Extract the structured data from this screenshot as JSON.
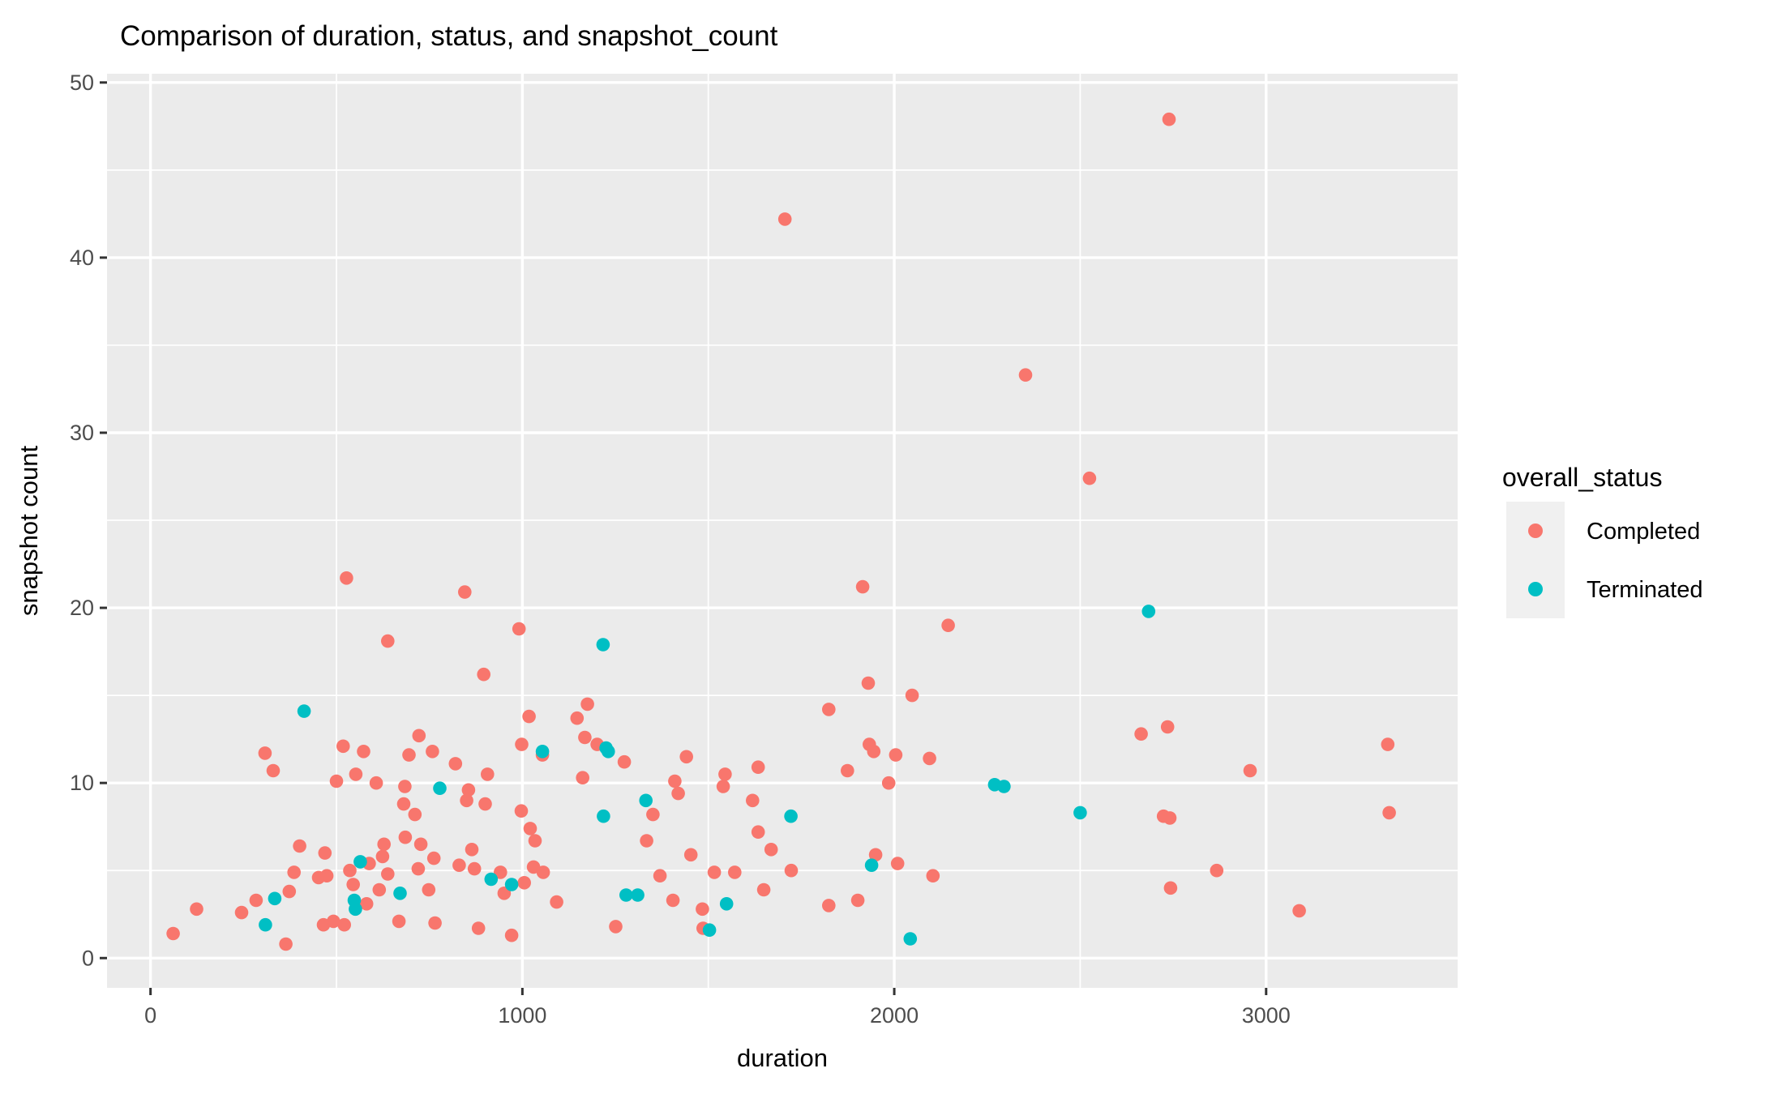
{
  "title": "Comparison of duration, status, and snapshot_count",
  "colors": {
    "panel_bg": "#EBEBEB",
    "grid": "#FFFFFF",
    "tick_text": "#4D4D4D",
    "tick_mark": "#333333",
    "text": "#000000",
    "legend_key_bg": "#F0F0F0",
    "completed": "#F8766D",
    "terminated": "#00BFC4"
  },
  "chart_data": {
    "type": "scatter",
    "title": "Comparison of duration, status, and snapshot_count",
    "xlabel": "duration",
    "ylabel": "snapshot count",
    "xlim": [
      -117,
      3515
    ],
    "ylim": [
      -1.7,
      50.5
    ],
    "x_ticks": [
      0,
      1000,
      2000,
      3000
    ],
    "x_minor_ticks": [
      500,
      1500,
      2500
    ],
    "y_ticks": [
      0,
      10,
      20,
      30,
      40,
      50
    ],
    "y_minor_ticks": [
      5,
      15,
      25,
      35,
      45
    ],
    "grid": true,
    "point_radius_px": 8.3,
    "legend": {
      "title": "overall_status",
      "position": "right",
      "entries": [
        {
          "label": "Completed",
          "color": "#F8766D"
        },
        {
          "label": "Terminated",
          "color": "#00BFC4"
        }
      ]
    },
    "series": [
      {
        "name": "Completed",
        "color": "#F8766D",
        "points": [
          [
            2739,
            47.9
          ],
          [
            1706,
            42.2
          ],
          [
            2353,
            33.3
          ],
          [
            2525,
            27.4
          ],
          [
            527,
            21.7
          ],
          [
            845,
            20.9
          ],
          [
            991,
            18.8
          ],
          [
            638,
            18.1
          ],
          [
            896,
            16.2
          ],
          [
            1018,
            13.8
          ],
          [
            722,
            12.7
          ],
          [
            518,
            12.1
          ],
          [
            573,
            11.8
          ],
          [
            758,
            11.8
          ],
          [
            998,
            12.2
          ],
          [
            1054,
            11.6
          ],
          [
            308,
            11.7
          ],
          [
            330,
            10.7
          ],
          [
            1915,
            21.2
          ],
          [
            2145,
            19.0
          ],
          [
            1930,
            15.7
          ],
          [
            2048,
            15.0
          ],
          [
            1824,
            14.2
          ],
          [
            1175,
            14.5
          ],
          [
            1147,
            13.7
          ],
          [
            1168,
            12.6
          ],
          [
            1201,
            12.2
          ],
          [
            1933,
            12.2
          ],
          [
            1945,
            11.8
          ],
          [
            2004,
            11.6
          ],
          [
            2095,
            11.4
          ],
          [
            1441,
            11.5
          ],
          [
            2664,
            12.8
          ],
          [
            2735,
            13.2
          ],
          [
            3327,
            12.2
          ],
          [
            500,
            10.1
          ],
          [
            552,
            10.5
          ],
          [
            607,
            10.0
          ],
          [
            695,
            11.6
          ],
          [
            684,
            9.8
          ],
          [
            681,
            8.8
          ],
          [
            711,
            8.2
          ],
          [
            685,
            6.9
          ],
          [
            727,
            6.5
          ],
          [
            762,
            5.7
          ],
          [
            401,
            6.4
          ],
          [
            469,
            6.0
          ],
          [
            386,
            4.9
          ],
          [
            452,
            4.6
          ],
          [
            474,
            4.7
          ],
          [
            588,
            5.4
          ],
          [
            624,
            5.8
          ],
          [
            638,
            4.8
          ],
          [
            536,
            5.0
          ],
          [
            545,
            4.2
          ],
          [
            748,
            3.9
          ],
          [
            628,
            6.5
          ],
          [
            615,
            3.9
          ],
          [
            284,
            3.3
          ],
          [
            245,
            2.6
          ],
          [
            61,
            1.4
          ],
          [
            124,
            2.8
          ],
          [
            364,
            0.8
          ],
          [
            465,
            1.9
          ],
          [
            492,
            2.1
          ],
          [
            521,
            1.9
          ],
          [
            668,
            2.1
          ],
          [
            581,
            3.1
          ],
          [
            373,
            3.8
          ],
          [
            720,
            5.1
          ],
          [
            765,
            2.0
          ],
          [
            830,
            5.3
          ],
          [
            864,
            6.2
          ],
          [
            871,
            5.1
          ],
          [
            941,
            4.9
          ],
          [
            1092,
            3.2
          ],
          [
            820,
            11.1
          ],
          [
            906,
            10.5
          ],
          [
            855,
            9.6
          ],
          [
            850,
            9.0
          ],
          [
            900,
            8.8
          ],
          [
            997,
            8.4
          ],
          [
            1021,
            7.4
          ],
          [
            1034,
            6.7
          ],
          [
            951,
            3.7
          ],
          [
            1005,
            4.3
          ],
          [
            1030,
            5.2
          ],
          [
            1056,
            4.9
          ],
          [
            882,
            1.7
          ],
          [
            971,
            1.3
          ],
          [
            1274,
            11.2
          ],
          [
            1162,
            10.3
          ],
          [
            1351,
            8.2
          ],
          [
            1410,
            10.1
          ],
          [
            1419,
            9.4
          ],
          [
            1545,
            10.5
          ],
          [
            1540,
            9.8
          ],
          [
            1634,
            10.9
          ],
          [
            1334,
            6.7
          ],
          [
            1453,
            5.9
          ],
          [
            1516,
            4.9
          ],
          [
            1571,
            4.9
          ],
          [
            1405,
            3.3
          ],
          [
            1484,
            2.8
          ],
          [
            1486,
            1.7
          ],
          [
            1251,
            1.8
          ],
          [
            1649,
            3.9
          ],
          [
            1619,
            9.0
          ],
          [
            1634,
            7.2
          ],
          [
            1669,
            6.2
          ],
          [
            1723,
            5.0
          ],
          [
            1370,
            4.7
          ],
          [
            1874,
            10.7
          ],
          [
            1985,
            10.0
          ],
          [
            1950,
            5.9
          ],
          [
            2009,
            5.4
          ],
          [
            2104,
            4.7
          ],
          [
            1902,
            3.3
          ],
          [
            1824,
            3.0
          ],
          [
            2957,
            10.7
          ],
          [
            2724,
            8.1
          ],
          [
            2741,
            8.0
          ],
          [
            3331,
            8.3
          ],
          [
            2867,
            5.0
          ],
          [
            2743,
            4.0
          ],
          [
            3089,
            2.7
          ]
        ]
      },
      {
        "name": "Terminated",
        "color": "#00BFC4",
        "points": [
          [
            413,
            14.1
          ],
          [
            1217,
            17.9
          ],
          [
            1231,
            11.8
          ],
          [
            2684,
            19.8
          ],
          [
            778,
            9.7
          ],
          [
            564,
            5.5
          ],
          [
            671,
            3.7
          ],
          [
            334,
            3.4
          ],
          [
            309,
            1.9
          ],
          [
            548,
            3.3
          ],
          [
            551,
            2.8
          ],
          [
            916,
            4.5
          ],
          [
            971,
            4.2
          ],
          [
            1054,
            11.8
          ],
          [
            1225,
            12.0
          ],
          [
            1332,
            9.0
          ],
          [
            1218,
            8.1
          ],
          [
            1279,
            3.6
          ],
          [
            1310,
            3.6
          ],
          [
            1503,
            1.6
          ],
          [
            1549,
            3.1
          ],
          [
            2270,
            9.9
          ],
          [
            2295,
            9.8
          ],
          [
            2500,
            8.3
          ],
          [
            1722,
            8.1
          ],
          [
            1939,
            5.3
          ],
          [
            2043,
            1.1
          ]
        ]
      }
    ]
  }
}
